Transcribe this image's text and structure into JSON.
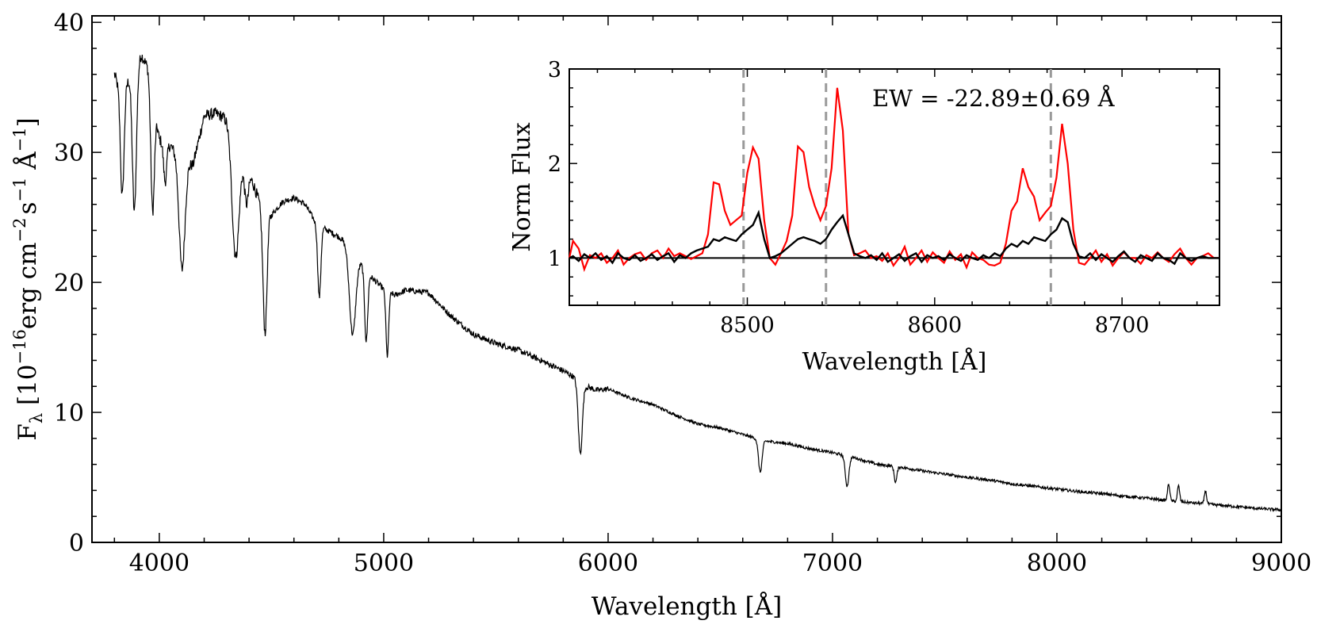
{
  "chart_data": [
    {
      "name": "main",
      "type": "line",
      "xlabel": "Wavelength [Å]",
      "ylabel_parts": [
        "F",
        "λ",
        " [10",
        "−16",
        "erg cm",
        "−2",
        "s",
        "−1",
        " Å",
        "−1",
        "]"
      ],
      "xlim": [
        3700,
        9000
      ],
      "ylim": [
        0,
        40.5
      ],
      "xticks": [
        4000,
        5000,
        6000,
        7000,
        8000,
        9000
      ],
      "yticks": [
        0,
        10,
        20,
        30,
        40
      ],
      "grid": false,
      "series": [
        {
          "name": "spectrum",
          "color": "#000000",
          "noise_seed": 12345,
          "x": [
            3800,
            3830,
            3860,
            3890,
            3920,
            3950,
            3980,
            4000,
            4050,
            4100,
            4150,
            4200,
            4250,
            4300,
            4350,
            4400,
            4450,
            4500,
            4550,
            4600,
            4650,
            4700,
            4750,
            4800,
            4850,
            4900,
            4950,
            5000,
            5050,
            5100,
            5200,
            5300,
            5400,
            5500,
            5600,
            5700,
            5800,
            5850,
            5900,
            5950,
            6000,
            6100,
            6200,
            6300,
            6400,
            6500,
            6600,
            6700,
            6800,
            6900,
            7000,
            7100,
            7200,
            7300,
            7400,
            7500,
            7600,
            7700,
            7800,
            7900,
            8000,
            8100,
            8200,
            8300,
            8400,
            8500,
            8600,
            8700,
            8800,
            8900,
            9000
          ],
          "y": [
            36,
            34.5,
            35.5,
            36.5,
            37.5,
            36.5,
            33.5,
            31,
            30.5,
            29.5,
            29,
            32.8,
            33,
            32.6,
            31.2,
            28.5,
            26,
            25.2,
            26.2,
            26.5,
            26,
            24.5,
            24,
            23.5,
            22.8,
            21.5,
            20.3,
            19.5,
            19,
            19.4,
            19.2,
            17.4,
            16,
            15.3,
            14.8,
            14,
            13.2,
            12.7,
            12,
            11.7,
            11.8,
            11.1,
            10.6,
            9.8,
            9.1,
            8.8,
            8.3,
            7.8,
            7.6,
            7.2,
            6.9,
            6.5,
            6.0,
            5.8,
            5.5,
            5.25,
            5.0,
            4.8,
            4.5,
            4.3,
            4.1,
            3.9,
            3.75,
            3.55,
            3.4,
            3.2,
            3.05,
            2.9,
            2.75,
            2.6,
            2.5
          ],
          "absorption_lines": [
            {
              "wavelength": 3835,
              "depth": 8.0,
              "width": 8
            },
            {
              "wavelength": 3889,
              "depth": 11.0,
              "width": 9
            },
            {
              "wavelength": 3970,
              "depth": 9.0,
              "width": 8
            },
            {
              "wavelength": 4026,
              "depth": 3.0,
              "width": 7
            },
            {
              "wavelength": 4101,
              "depth": 8.5,
              "width": 13
            },
            {
              "wavelength": 4340,
              "depth": 9.5,
              "width": 16
            },
            {
              "wavelength": 4388,
              "depth": 3.0,
              "width": 9
            },
            {
              "wavelength": 4471,
              "depth": 9.5,
              "width": 9
            },
            {
              "wavelength": 4713,
              "depth": 5.5,
              "width": 7
            },
            {
              "wavelength": 4861,
              "depth": 6.5,
              "width": 14
            },
            {
              "wavelength": 4922,
              "depth": 5.5,
              "width": 7
            },
            {
              "wavelength": 5016,
              "depth": 5.0,
              "width": 6
            },
            {
              "wavelength": 5876,
              "depth": 5.5,
              "width": 9
            },
            {
              "wavelength": 6678,
              "depth": 2.5,
              "width": 8
            },
            {
              "wavelength": 7065,
              "depth": 2.3,
              "width": 8
            },
            {
              "wavelength": 7281,
              "depth": 1.2,
              "width": 6
            }
          ],
          "emission_lines": [
            {
              "wavelength": 8498,
              "height": 1.3,
              "width": 5
            },
            {
              "wavelength": 8542,
              "height": 1.2,
              "width": 5
            },
            {
              "wavelength": 8662,
              "height": 1.0,
              "width": 5
            }
          ]
        }
      ]
    },
    {
      "name": "inset",
      "type": "line",
      "xlabel": "Wavelength [Å]",
      "ylabel": "Norm Flux",
      "xlim": [
        8405,
        8752
      ],
      "ylim": [
        0.5,
        3.0
      ],
      "xticks": [
        8500,
        8600,
        8700
      ],
      "yticks": [
        1,
        2,
        3
      ],
      "grid": false,
      "annotation": "EW = -22.89±0.69 Å",
      "vlines": [
        8498,
        8542,
        8662
      ],
      "hline": 1,
      "series": [
        {
          "name": "red",
          "color": "#ff0000",
          "x": [
            8405,
            8407,
            8410,
            8413,
            8416,
            8419,
            8422,
            8425,
            8428,
            8431,
            8434,
            8437,
            8440,
            8443,
            8446,
            8449,
            8452,
            8455,
            8458,
            8461,
            8464,
            8467,
            8470,
            8473,
            8476,
            8479,
            8482,
            8485,
            8488,
            8491,
            8494,
            8497,
            8500,
            8503,
            8506,
            8509,
            8512,
            8515,
            8518,
            8521,
            8524,
            8527,
            8530,
            8533,
            8536,
            8539,
            8542,
            8545,
            8548,
            8551,
            8554,
            8557,
            8560,
            8563,
            8566,
            8569,
            8572,
            8575,
            8578,
            8581,
            8584,
            8587,
            8590,
            8593,
            8596,
            8599,
            8602,
            8605,
            8608,
            8611,
            8614,
            8617,
            8620,
            8623,
            8626,
            8629,
            8632,
            8635,
            8638,
            8641,
            8644,
            8647,
            8650,
            8653,
            8656,
            8659,
            8662,
            8665,
            8668,
            8671,
            8674,
            8677,
            8680,
            8683,
            8686,
            8689,
            8692,
            8695,
            8698,
            8701,
            8704,
            8707,
            8710,
            8713,
            8716,
            8719,
            8722,
            8725,
            8728,
            8731,
            8734,
            8737,
            8740,
            8743,
            8746,
            8749,
            8752
          ],
          "y": [
            1.0,
            1.18,
            1.1,
            0.88,
            1.03,
            1.0,
            1.05,
            0.95,
            1.0,
            1.08,
            0.93,
            1.0,
            1.04,
            1.06,
            0.98,
            1.05,
            1.08,
            1.0,
            1.1,
            1.02,
            1.05,
            1.02,
            0.99,
            1.02,
            1.05,
            1.25,
            1.8,
            1.78,
            1.5,
            1.35,
            1.4,
            1.45,
            1.9,
            2.17,
            2.05,
            1.4,
            1.0,
            0.93,
            1.05,
            1.18,
            1.45,
            2.18,
            2.12,
            1.75,
            1.55,
            1.4,
            1.55,
            1.95,
            2.8,
            2.35,
            1.25,
            1.03,
            1.05,
            1.08,
            1.0,
            1.02,
            0.97,
            1.05,
            0.92,
            1.0,
            1.12,
            0.93,
            1.0,
            1.08,
            0.96,
            1.06,
            1.0,
            0.95,
            1.07,
            0.98,
            1.04,
            0.9,
            1.06,
            1.0,
            0.98,
            0.93,
            0.92,
            0.95,
            1.15,
            1.5,
            1.6,
            1.95,
            1.75,
            1.65,
            1.4,
            1.48,
            1.55,
            1.85,
            2.42,
            2.0,
            1.3,
            0.95,
            0.93,
            1.0,
            1.08,
            0.96,
            1.04,
            0.92,
            1.0,
            1.06,
            1.0,
            1.0,
            0.94,
            1.03,
            1.0,
            1.06,
            1.0,
            0.96,
            1.04,
            1.1,
            1.0,
            0.93,
            1.0,
            1.02,
            1.05,
            1.0,
            1.0
          ]
        },
        {
          "name": "black",
          "color": "#000000",
          "x": [
            8405,
            8407,
            8410,
            8413,
            8416,
            8419,
            8422,
            8425,
            8428,
            8431,
            8434,
            8437,
            8440,
            8443,
            8446,
            8449,
            8452,
            8455,
            8458,
            8461,
            8464,
            8467,
            8470,
            8473,
            8476,
            8479,
            8482,
            8485,
            8488,
            8491,
            8494,
            8497,
            8500,
            8503,
            8506,
            8509,
            8512,
            8515,
            8518,
            8521,
            8524,
            8527,
            8530,
            8533,
            8536,
            8539,
            8542,
            8545,
            8548,
            8551,
            8554,
            8557,
            8560,
            8563,
            8566,
            8569,
            8572,
            8575,
            8578,
            8581,
            8584,
            8587,
            8590,
            8593,
            8596,
            8599,
            8602,
            8605,
            8608,
            8611,
            8614,
            8617,
            8620,
            8623,
            8626,
            8629,
            8632,
            8635,
            8638,
            8641,
            8644,
            8647,
            8650,
            8653,
            8656,
            8659,
            8662,
            8665,
            8668,
            8671,
            8674,
            8677,
            8680,
            8683,
            8686,
            8689,
            8692,
            8695,
            8698,
            8701,
            8704,
            8707,
            8710,
            8713,
            8716,
            8719,
            8722,
            8725,
            8728,
            8731,
            8734,
            8737,
            8740,
            8743,
            8746,
            8749,
            8752
          ],
          "y": [
            1.0,
            1.02,
            0.97,
            1.04,
            1.0,
            1.05,
            0.98,
            1.02,
            0.95,
            1.05,
            1.0,
            0.98,
            1.03,
            0.97,
            1.0,
            1.04,
            0.98,
            1.02,
            1.05,
            0.96,
            1.03,
            1.0,
            1.05,
            1.08,
            1.1,
            1.12,
            1.2,
            1.18,
            1.22,
            1.2,
            1.18,
            1.25,
            1.3,
            1.35,
            1.48,
            1.2,
            1.0,
            1.02,
            1.05,
            1.1,
            1.15,
            1.2,
            1.22,
            1.2,
            1.18,
            1.15,
            1.2,
            1.3,
            1.38,
            1.45,
            1.25,
            1.05,
            1.02,
            1.0,
            1.03,
            0.98,
            1.05,
            0.96,
            1.0,
            1.04,
            0.97,
            1.02,
            1.05,
            0.96,
            1.03,
            1.0,
            1.02,
            0.98,
            1.04,
            1.0,
            0.97,
            1.03,
            1.0,
            0.98,
            1.03,
            1.0,
            1.05,
            1.02,
            1.1,
            1.15,
            1.12,
            1.18,
            1.15,
            1.22,
            1.2,
            1.18,
            1.25,
            1.3,
            1.42,
            1.38,
            1.15,
            1.02,
            1.0,
            1.05,
            0.98,
            1.04,
            1.0,
            0.96,
            1.02,
            1.07,
            1.0,
            0.96,
            1.03,
            1.0,
            0.97,
            1.05,
            1.0,
            0.98,
            0.94,
            1.05,
            1.0,
            0.97,
            1.0,
            1.02,
            1.0,
            1.0,
            1.0
          ]
        }
      ]
    }
  ]
}
